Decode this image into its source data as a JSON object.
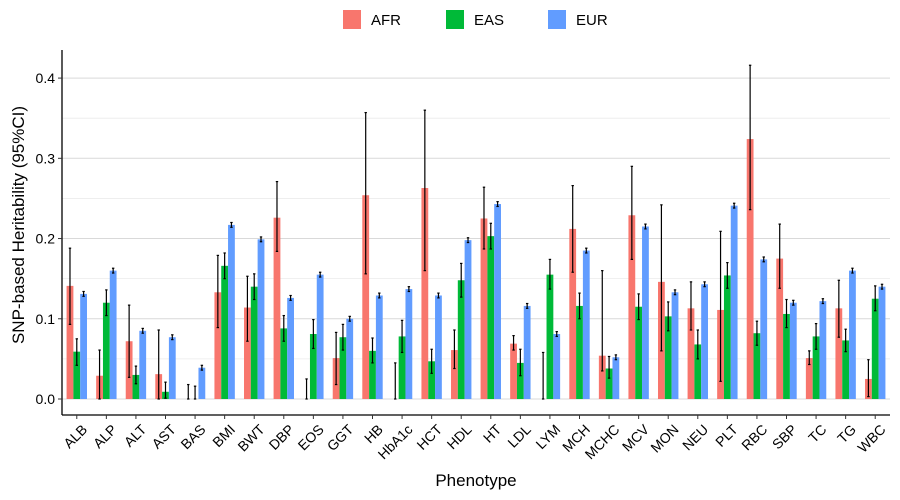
{
  "chart_data": {
    "type": "bar",
    "title": "",
    "xlabel": "Phenotype",
    "ylabel": "SNP-based Heritability (95%CI)",
    "ylim": [
      0,
      0.435
    ],
    "yticks": [
      0.0,
      0.1,
      0.2,
      0.3,
      0.4
    ],
    "ytick_labels": [
      "0.0",
      "0.1",
      "0.2",
      "0.3",
      "0.4"
    ],
    "grid": true,
    "legend_position": "top",
    "categories": [
      "ALB",
      "ALP",
      "ALT",
      "AST",
      "BAS",
      "BMI",
      "BWT",
      "DBP",
      "EOS",
      "GGT",
      "HB",
      "HbA1c",
      "HCT",
      "HDL",
      "HT",
      "LDL",
      "LYM",
      "MCH",
      "MCHC",
      "MCV",
      "MON",
      "NEU",
      "PLT",
      "RBC",
      "SBP",
      "TC",
      "TG",
      "WBC"
    ],
    "series": [
      {
        "name": "AFR",
        "color": "#F8766D",
        "values": [
          0.141,
          0.029,
          0.072,
          0.031,
          0.0,
          0.133,
          0.114,
          0.226,
          0.0,
          0.051,
          0.254,
          0.0,
          0.263,
          0.061,
          0.225,
          0.069,
          0.0,
          0.212,
          0.054,
          0.229,
          0.146,
          0.113,
          0.111,
          0.324,
          0.175,
          0.051,
          0.113,
          0.025
        ],
        "lower": [
          0.093,
          0.0,
          0.027,
          0.0,
          0.0,
          0.089,
          0.072,
          0.184,
          0.0,
          0.018,
          0.156,
          0.0,
          0.16,
          0.038,
          0.187,
          0.061,
          0.0,
          0.158,
          0.035,
          0.174,
          0.06,
          0.086,
          0.022,
          0.236,
          0.138,
          0.043,
          0.077,
          0.003
        ],
        "upper": [
          0.188,
          0.061,
          0.117,
          0.086,
          0.018,
          0.179,
          0.153,
          0.271,
          0.025,
          0.083,
          0.357,
          0.045,
          0.36,
          0.086,
          0.264,
          0.079,
          0.058,
          0.266,
          0.16,
          0.29,
          0.242,
          0.146,
          0.209,
          0.416,
          0.218,
          0.06,
          0.148,
          0.049
        ]
      },
      {
        "name": "EAS",
        "color": "#00BA38",
        "values": [
          0.059,
          0.12,
          0.03,
          0.009,
          0.0,
          0.166,
          0.14,
          0.088,
          0.081,
          0.077,
          0.06,
          0.078,
          0.047,
          0.148,
          0.203,
          0.045,
          0.155,
          0.116,
          0.038,
          0.115,
          0.103,
          0.068,
          0.154,
          0.082,
          0.106,
          0.078,
          0.073,
          0.125
        ],
        "lower": [
          0.042,
          0.104,
          0.019,
          0.001,
          0.0,
          0.15,
          0.124,
          0.072,
          0.063,
          0.061,
          0.045,
          0.058,
          0.032,
          0.127,
          0.187,
          0.029,
          0.137,
          0.1,
          0.026,
          0.099,
          0.085,
          0.05,
          0.138,
          0.067,
          0.089,
          0.062,
          0.059,
          0.11
        ],
        "upper": [
          0.075,
          0.136,
          0.041,
          0.021,
          0.016,
          0.182,
          0.156,
          0.104,
          0.099,
          0.093,
          0.076,
          0.098,
          0.062,
          0.169,
          0.219,
          0.062,
          0.174,
          0.132,
          0.053,
          0.131,
          0.121,
          0.086,
          0.17,
          0.097,
          0.124,
          0.094,
          0.087,
          0.141
        ]
      },
      {
        "name": "EUR",
        "color": "#619CFF",
        "values": [
          0.131,
          0.16,
          0.085,
          0.077,
          0.039,
          0.217,
          0.199,
          0.126,
          0.155,
          0.1,
          0.129,
          0.137,
          0.129,
          0.198,
          0.243,
          0.116,
          0.081,
          0.185,
          0.052,
          0.215,
          0.133,
          0.143,
          0.241,
          0.174,
          0.12,
          0.122,
          0.16,
          0.14
        ],
        "lower": [
          0.128,
          0.157,
          0.082,
          0.074,
          0.036,
          0.214,
          0.196,
          0.123,
          0.152,
          0.097,
          0.126,
          0.134,
          0.126,
          0.195,
          0.24,
          0.113,
          0.078,
          0.182,
          0.049,
          0.212,
          0.13,
          0.14,
          0.238,
          0.171,
          0.117,
          0.119,
          0.157,
          0.137
        ],
        "upper": [
          0.134,
          0.163,
          0.088,
          0.08,
          0.042,
          0.22,
          0.202,
          0.129,
          0.158,
          0.103,
          0.132,
          0.14,
          0.132,
          0.201,
          0.246,
          0.119,
          0.084,
          0.188,
          0.055,
          0.218,
          0.136,
          0.146,
          0.244,
          0.177,
          0.123,
          0.125,
          0.163,
          0.143
        ]
      }
    ]
  }
}
